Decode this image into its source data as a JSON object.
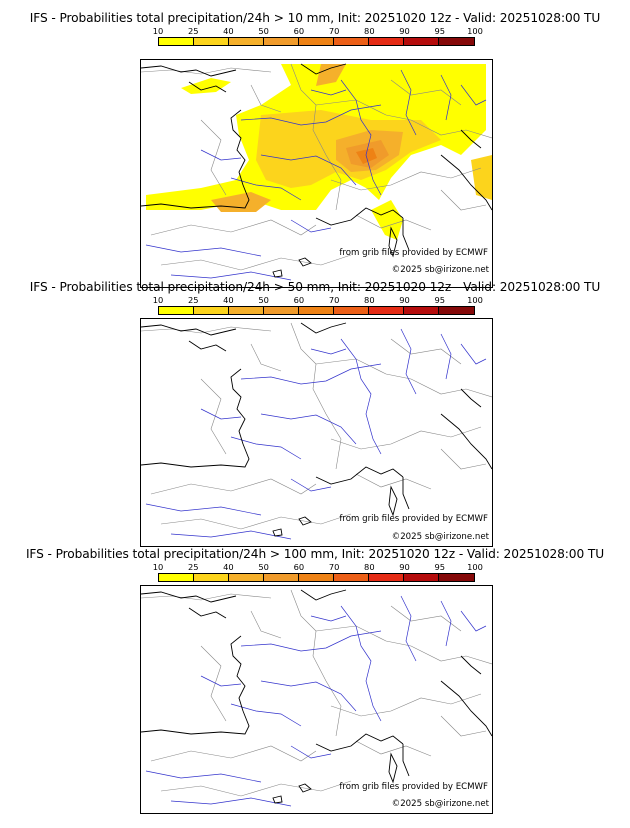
{
  "colorbar": {
    "ticks": [
      "10",
      "25",
      "40",
      "50",
      "60",
      "70",
      "80",
      "90",
      "95",
      "100"
    ],
    "colors": [
      "#ffff00",
      "#fcd41c",
      "#f5b02b",
      "#f09b2b",
      "#ee8215",
      "#ec5f17",
      "#e52b15",
      "#b50c0c",
      "#850909"
    ],
    "edge_color": "#000000"
  },
  "panels": [
    {
      "title": "IFS - Probabilities total precipitation/24h > 10 mm, Init: 20251020 12z - Valid: 20251028:00 TU",
      "threshold_mm": 10,
      "shaded": true,
      "credit_source": "from grib files provided by ECMWF",
      "credit_copyright": "©2025 sb@irizone.net"
    },
    {
      "title": "IFS - Probabilities total precipitation/24h > 50 mm, Init: 20251020 12z - Valid: 20251028:00 TU",
      "threshold_mm": 50,
      "shaded": false,
      "credit_source": "from grib files provided by ECMWF",
      "credit_copyright": "©2025 sb@irizone.net"
    },
    {
      "title": "IFS - Probabilities total precipitation/24h > 100 mm, Init: 20251020 12z - Valid: 20251028:00 TU",
      "threshold_mm": 100,
      "shaded": false,
      "credit_source": "from grib files provided by ECMWF",
      "credit_copyright": "©2025 sb@irizone.net"
    }
  ],
  "map_style": {
    "coast_color": "#000000",
    "border_color": "#888888",
    "river_color": "#3333cc",
    "shade_colors": [
      "#ffff00",
      "#fcd41c",
      "#f5b02b",
      "#f09b2b",
      "#ee8215"
    ]
  }
}
